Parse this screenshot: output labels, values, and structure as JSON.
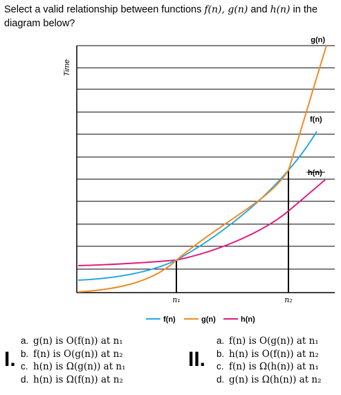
{
  "question": {
    "prefix": "Select a valid relationship between functions ",
    "functions": "f(n), g(n)",
    "connector": " and ",
    "last_function": "h(n)",
    "suffix": " in the diagram below?"
  },
  "diagram": {
    "y_axis_label": "Time",
    "curve_labels": {
      "g": "g(n)",
      "f": "f(n)",
      "h": "h(n)"
    },
    "markers": {
      "n1": "n₁",
      "n2": "n₂"
    },
    "colors": {
      "f": "#29a8e0",
      "g": "#f08a24",
      "h": "#e01a7f",
      "grid": "#000000"
    },
    "legend": [
      {
        "key": "f",
        "label": "f(n)"
      },
      {
        "key": "g",
        "label": "g(n)"
      },
      {
        "key": "h",
        "label": "h(n)"
      }
    ]
  },
  "options": {
    "group1": {
      "numeral": "I.",
      "items": [
        {
          "letter": "a.",
          "text": "g(n) is O(f(n)) at n₁"
        },
        {
          "letter": "b.",
          "text": "f(n) is O(g(n)) at n₂"
        },
        {
          "letter": "c.",
          "text": "h(n) is Ω(g(n)) at n₁"
        },
        {
          "letter": "d.",
          "text": "h(n) is Ω(f(n)) at n₂"
        }
      ]
    },
    "group2": {
      "numeral": "II.",
      "items": [
        {
          "letter": "a.",
          "text": "f(n) is O(g(n)) at n₁"
        },
        {
          "letter": "b.",
          "text": "h(n) is O(f(n)) at n₂"
        },
        {
          "letter": "c.",
          "text": "f(n) is Ω(h(n)) at n₁"
        },
        {
          "letter": "d.",
          "text": "g(n) is Ω(h(n)) at n₂"
        }
      ]
    }
  }
}
